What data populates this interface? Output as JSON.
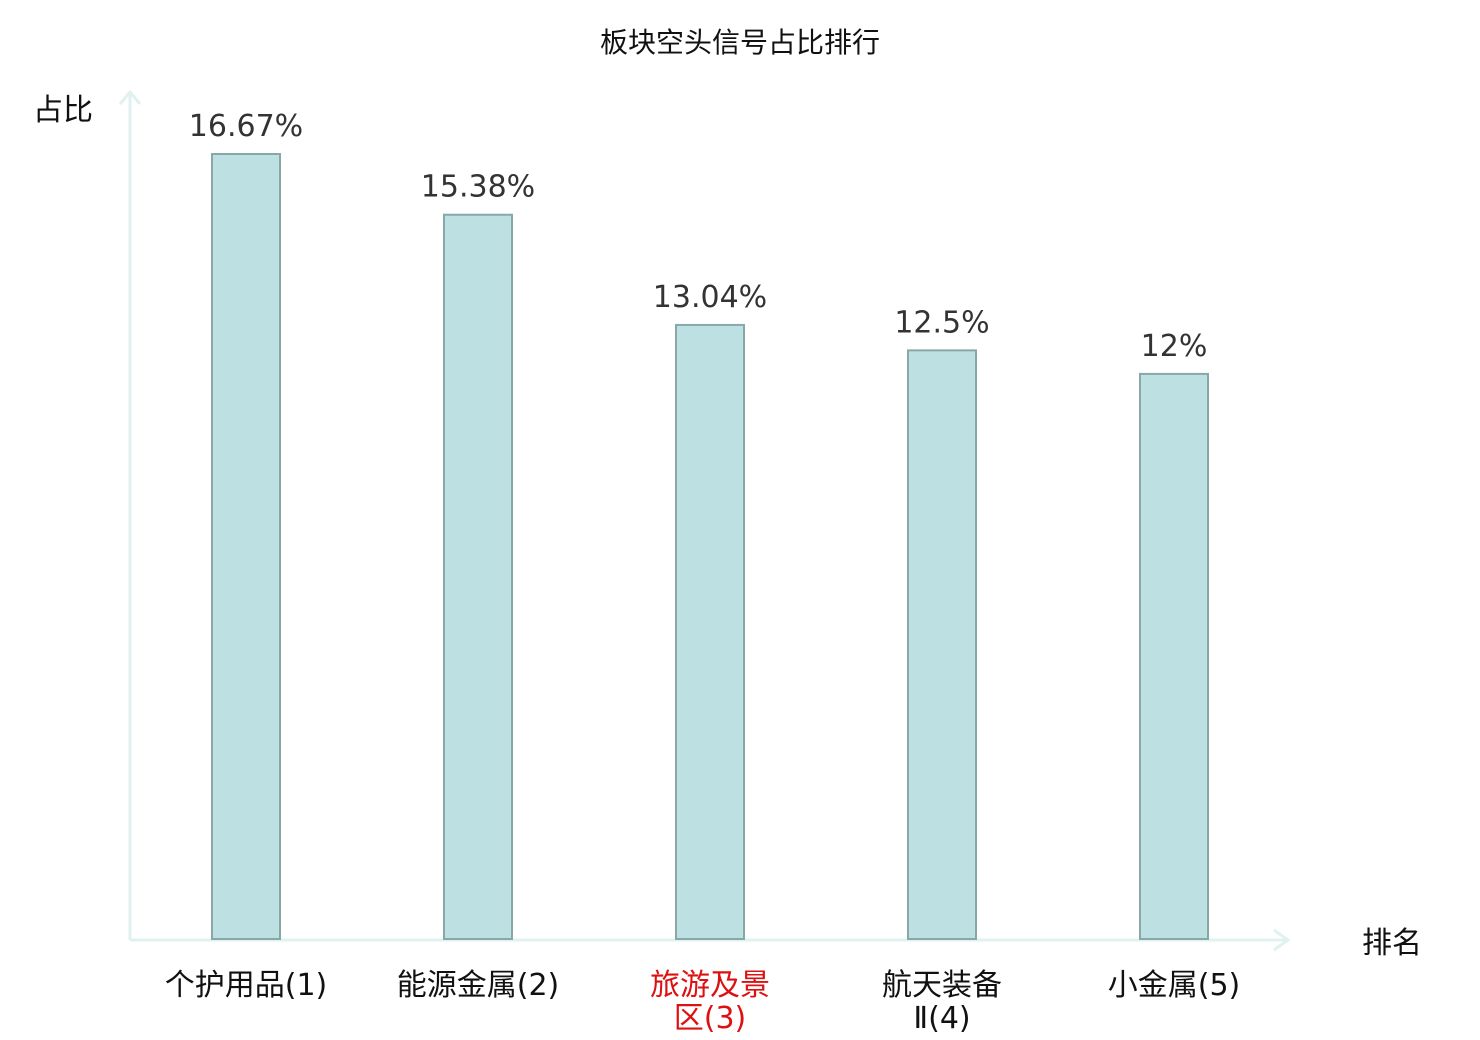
{
  "chart_data": {
    "type": "bar",
    "title": "板块空头信号占比排行",
    "ylabel": "占比",
    "xlabel": "排名",
    "categories": [
      {
        "lines": [
          "个护用品(1)"
        ],
        "highlight": false
      },
      {
        "lines": [
          "能源金属(2)"
        ],
        "highlight": false
      },
      {
        "lines": [
          "旅游及景",
          "区(3)"
        ],
        "highlight": true
      },
      {
        "lines": [
          "航天装备",
          "Ⅱ(4)"
        ],
        "highlight": false
      },
      {
        "lines": [
          "小金属(5)"
        ],
        "highlight": false
      }
    ],
    "values": [
      16.67,
      15.38,
      13.04,
      12.5,
      12
    ],
    "value_labels": [
      "16.67%",
      "15.38%",
      "13.04%",
      "12.5%",
      "12%"
    ],
    "ylim": [
      0,
      17.5
    ],
    "grid": false,
    "colors": {
      "bar_fill": "#bde1e2",
      "bar_stroke": "#8aa7a8",
      "axis": "#dff2ef",
      "highlight_label": "#dd1111",
      "normal_label": "#111111"
    }
  }
}
